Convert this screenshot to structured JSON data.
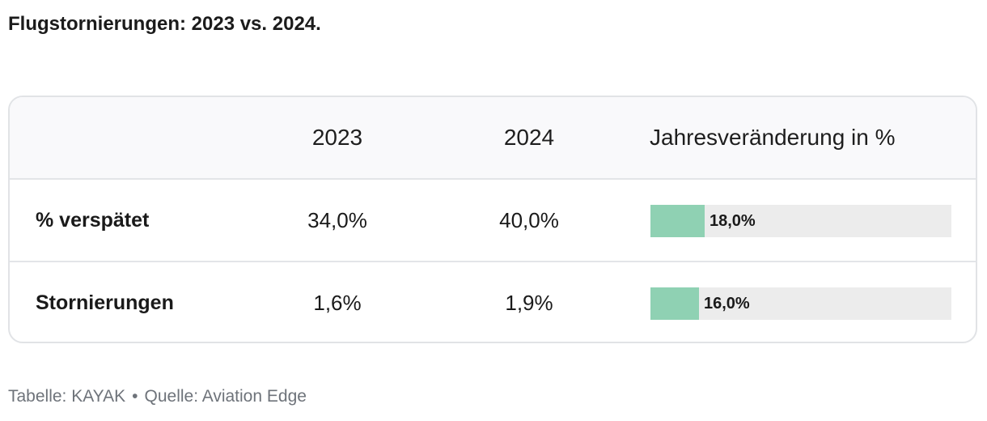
{
  "title": "Flugstornierungen: 2023 vs. 2024.",
  "table": {
    "headers": [
      "",
      "2023",
      "2024",
      "Jahresveränderung in %"
    ]
  },
  "chart_data": {
    "type": "table",
    "title": "Flugstornierungen: 2023 vs. 2024.",
    "columns": [
      "",
      "2023",
      "2024",
      "Jahresveränderung in %"
    ],
    "rows": [
      {
        "label": "% verspätet",
        "v2023": "34,0%",
        "v2024": "40,0%",
        "change": 18.0,
        "change_label": "18,0%"
      },
      {
        "label": "Stornierungen",
        "v2023": "1,6%",
        "v2024": "1,9%",
        "change": 16.0,
        "change_label": "16,0%"
      }
    ],
    "bar_scale_max": 100,
    "bar_color": "#8fd1b3",
    "track_color": "#ececec"
  },
  "footer": {
    "credit": "Tabelle: KAYAK",
    "separator": "•",
    "source": "Quelle: Aviation Edge"
  }
}
